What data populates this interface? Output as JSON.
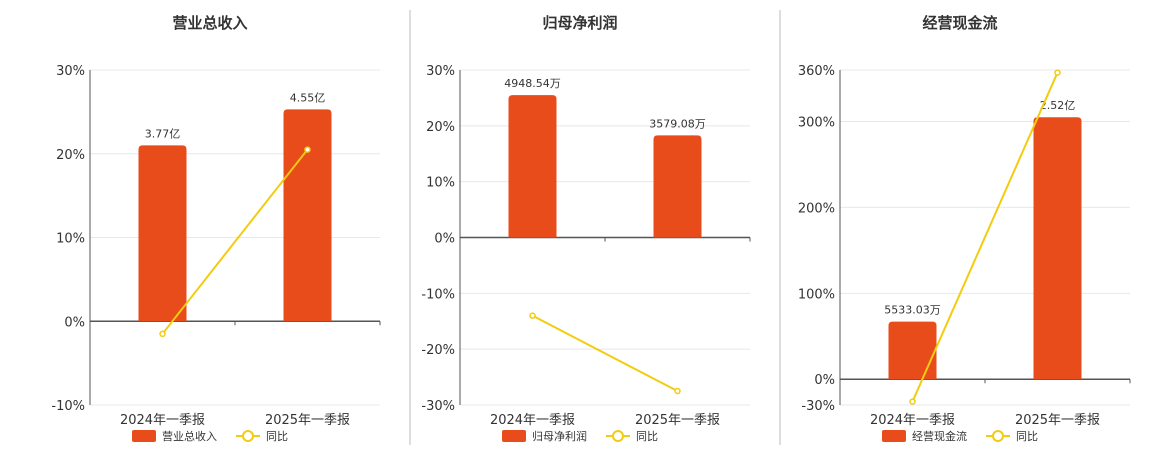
{
  "colors": {
    "bar": "#e84c1a",
    "line": "#f2cc10",
    "axis": "#555555",
    "grid": "#e8e8e8",
    "separator": "#bbbbbb",
    "text": "#333333"
  },
  "chart_data": [
    {
      "type": "bar",
      "title": "营业总收入",
      "categories": [
        "2024年一季报",
        "2025年一季报"
      ],
      "ylim": [
        -10,
        30
      ],
      "yticks": [
        -10,
        0,
        10,
        20,
        30
      ],
      "ytick_labels": [
        "-10%",
        "0%",
        "10%",
        "20%",
        "30%"
      ],
      "grid": true,
      "legend_position": "bottom",
      "series": [
        {
          "name": "营业总收入",
          "kind": "bar",
          "values": [
            21,
            25.3
          ],
          "labels": [
            "3.77亿",
            "4.55亿"
          ]
        },
        {
          "name": "同比",
          "kind": "line",
          "values": [
            -1.5,
            20.5
          ]
        }
      ]
    },
    {
      "type": "bar",
      "title": "归母净利润",
      "categories": [
        "2024年一季报",
        "2025年一季报"
      ],
      "ylim": [
        -30,
        30
      ],
      "yticks": [
        -30,
        -20,
        -10,
        0,
        10,
        20,
        30
      ],
      "ytick_labels": [
        "-30%",
        "-20%",
        "-10%",
        "0%",
        "10%",
        "20%",
        "30%"
      ],
      "grid": true,
      "legend_position": "bottom",
      "series": [
        {
          "name": "归母净利润",
          "kind": "bar",
          "values": [
            25.5,
            18.3
          ],
          "labels": [
            "4948.54万",
            "3579.08万"
          ]
        },
        {
          "name": "同比",
          "kind": "line",
          "values": [
            -14,
            -27.5
          ]
        }
      ]
    },
    {
      "type": "bar",
      "title": "经营现金流",
      "categories": [
        "2024年一季报",
        "2025年一季报"
      ],
      "ylim": [
        -30,
        360
      ],
      "yticks": [
        -30,
        0,
        100,
        200,
        300,
        360
      ],
      "ytick_labels": [
        "-30%",
        "0%",
        "100%",
        "200%",
        "300%",
        "360%"
      ],
      "grid": true,
      "legend_position": "bottom",
      "series": [
        {
          "name": "经营现金流",
          "kind": "bar",
          "values": [
            67,
            305
          ],
          "labels": [
            "5533.03万",
            "2.52亿"
          ]
        },
        {
          "name": "同比",
          "kind": "line",
          "values": [
            -26,
            357
          ]
        }
      ]
    }
  ]
}
